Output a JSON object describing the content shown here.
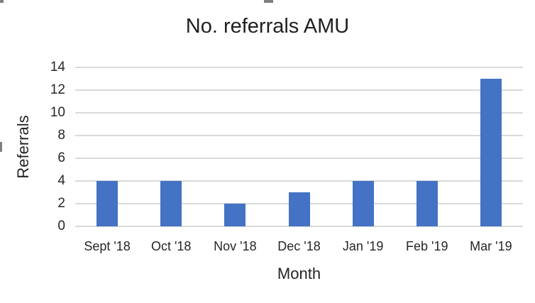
{
  "chart_data": {
    "type": "bar",
    "title": "No. referrals AMU",
    "categories": [
      "Sept '18",
      "Oct '18",
      "Nov '18",
      "Dec '18",
      "Jan '19",
      "Feb '19",
      "Mar '19"
    ],
    "values": [
      4,
      4,
      2,
      3,
      4,
      4,
      13
    ],
    "xlabel": "Month",
    "ylabel": "Referrals",
    "ylim": [
      0,
      14
    ],
    "yticks": [
      0,
      2,
      4,
      6,
      8,
      10,
      12,
      14
    ],
    "grid": true,
    "legend": "none",
    "bar_color": "#4472C4",
    "gridline_color": "#D9D9D9",
    "text_color": "#262626"
  }
}
